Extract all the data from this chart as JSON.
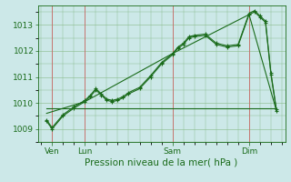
{
  "bg_color": "#cce8e8",
  "grid_color": "#88bb88",
  "line_color": "#1a6b1a",
  "vline_color": "#cc6666",
  "title": "Pression niveau de la mer( hPa )",
  "ylim": [
    1008.5,
    1013.75
  ],
  "yticks": [
    1009,
    1010,
    1011,
    1012,
    1013
  ],
  "xlim": [
    -0.3,
    22.3
  ],
  "day_labels": [
    "Ven",
    "Lun",
    "Sam",
    "Dim"
  ],
  "day_positions": [
    1,
    4,
    12,
    19
  ],
  "vline_positions": [
    1,
    4,
    12,
    19
  ],
  "series1_x": [
    0.5,
    1,
    2,
    3,
    4,
    4.5,
    5,
    5.5,
    6,
    6.5,
    7,
    7.5,
    8,
    9,
    10,
    11,
    12,
    12.5,
    13,
    13.5,
    14,
    15,
    16,
    17,
    18,
    19,
    19.5,
    20,
    20.5,
    21,
    21.5
  ],
  "series1_y": [
    1009.3,
    1009.0,
    1009.5,
    1009.8,
    1010.05,
    1010.25,
    1010.5,
    1010.3,
    1010.1,
    1010.05,
    1010.1,
    1010.2,
    1010.35,
    1010.55,
    1011.0,
    1011.5,
    1011.85,
    1012.1,
    1012.25,
    1012.5,
    1012.55,
    1012.6,
    1012.25,
    1012.15,
    1012.2,
    1013.4,
    1013.5,
    1013.3,
    1013.1,
    1011.1,
    1009.7
  ],
  "series2_x": [
    0.5,
    1,
    2,
    3,
    4,
    4.5,
    5,
    5.5,
    6,
    6.5,
    7,
    7.5,
    8,
    9,
    10,
    11,
    12,
    12.5,
    13,
    13.5,
    14,
    15,
    16,
    17,
    18,
    19,
    19.5,
    20,
    20.5,
    21,
    21.5
  ],
  "series2_y": [
    1009.35,
    1009.05,
    1009.55,
    1009.85,
    1010.1,
    1010.3,
    1010.55,
    1010.35,
    1010.15,
    1010.1,
    1010.15,
    1010.25,
    1010.4,
    1010.6,
    1011.05,
    1011.55,
    1011.9,
    1012.15,
    1012.3,
    1012.55,
    1012.6,
    1012.65,
    1012.3,
    1012.2,
    1012.25,
    1013.45,
    1013.55,
    1013.35,
    1013.15,
    1011.15,
    1009.75
  ],
  "envelope_x": [
    0.5,
    4,
    12,
    19,
    21.5
  ],
  "envelope_y": [
    1009.6,
    1010.05,
    1011.9,
    1013.4,
    1009.7
  ],
  "baseline_x": [
    0.5,
    21.5
  ],
  "baseline_y": [
    1009.8,
    1009.8
  ],
  "xlabel_fontsize": 7.5,
  "tick_fontsize": 6.5
}
